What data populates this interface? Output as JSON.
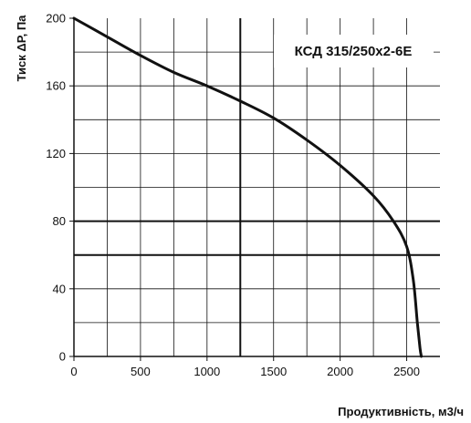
{
  "chart_data": {
    "type": "line",
    "title": "КСД 315/250x2-6Е",
    "xlabel": "Продуктивність, м3/ч",
    "ylabel": "Тиск ΔР, Па",
    "xlim": [
      0,
      2750
    ],
    "ylim": [
      0,
      200
    ],
    "x_ticks": [
      0,
      500,
      1000,
      1500,
      2000,
      2500
    ],
    "y_ticks": [
      0,
      40,
      80,
      120,
      160,
      200
    ],
    "minor_grid_x": [
      250,
      500,
      750,
      1000,
      1500,
      1750,
      2000,
      2250,
      2500
    ],
    "minor_grid_y": [
      20,
      40,
      100,
      120,
      140,
      160,
      180
    ],
    "major_grid_x": [
      1250
    ],
    "major_grid_y": [
      60,
      80
    ],
    "grid": true,
    "legend": "none",
    "series": [
      {
        "x": [
          0,
          250,
          500,
          750,
          1000,
          1250,
          1500,
          1750,
          2000,
          2250,
          2400,
          2500,
          2550,
          2580,
          2600,
          2610
        ],
        "y": [
          200,
          189,
          178,
          168,
          160,
          151,
          141,
          128,
          113,
          95,
          80,
          65,
          45,
          20,
          5,
          0
        ]
      }
    ],
    "colors": {
      "curve": "#111111",
      "grid": "#111111",
      "axis": "#111111"
    }
  }
}
